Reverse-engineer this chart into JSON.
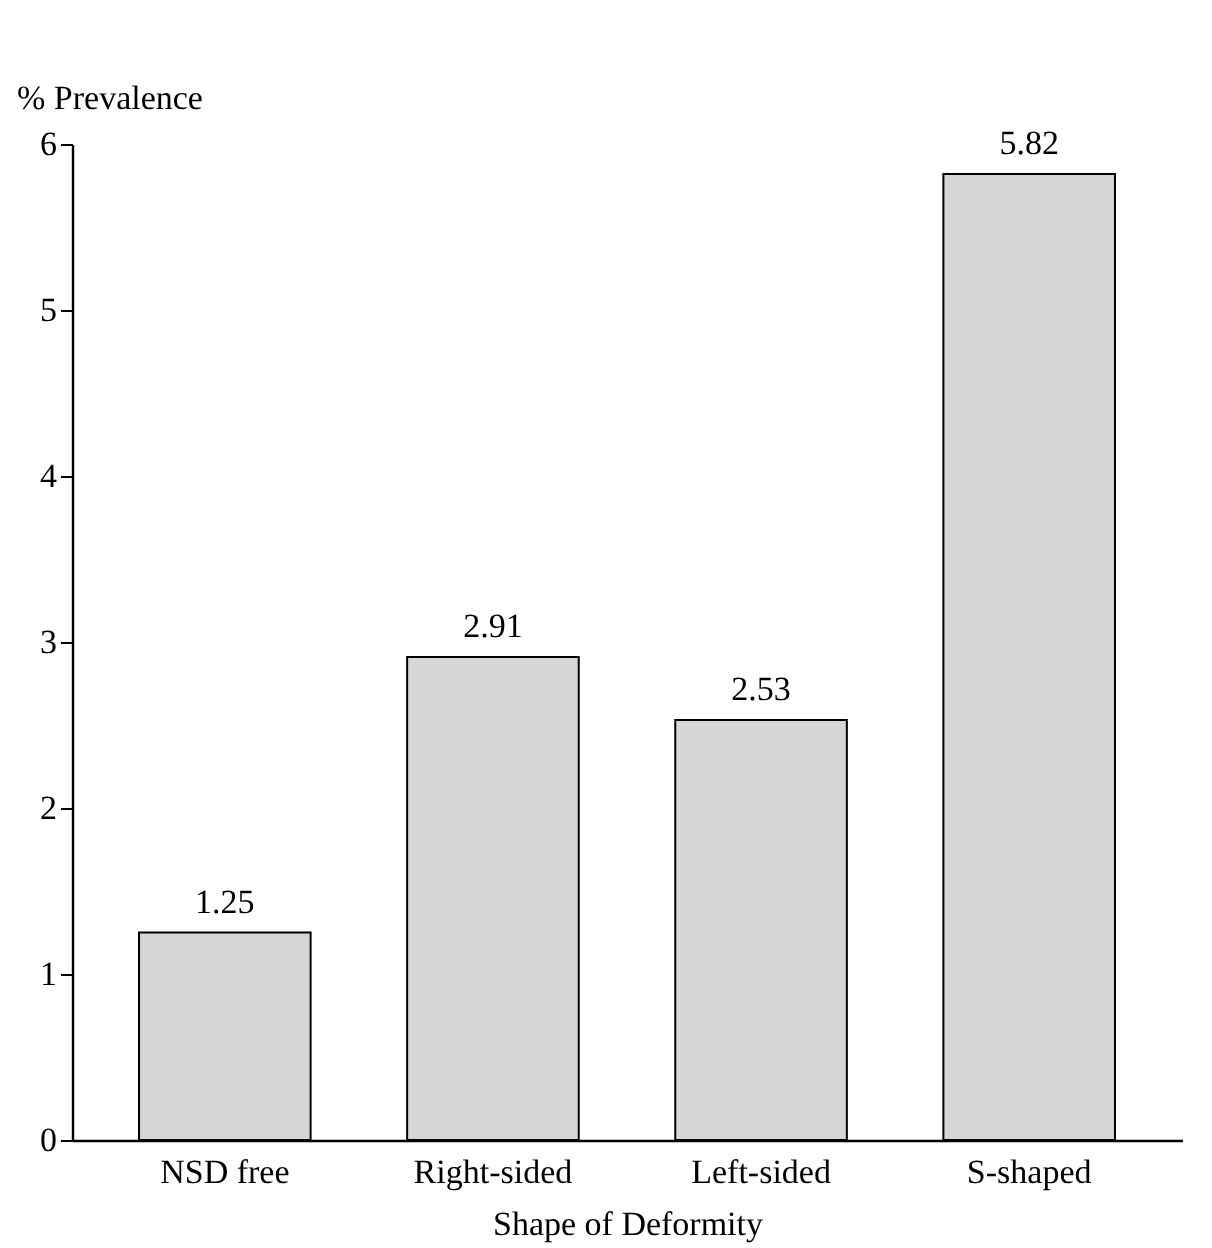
{
  "chart_data": {
    "type": "bar",
    "xlabel": "Shape of Deformity",
    "ylabel": "% Prevalence",
    "categories": [
      "NSD free",
      "Right-sided",
      "Left-sided",
      "S-shaped"
    ],
    "values": [
      1.25,
      2.91,
      2.53,
      5.82
    ],
    "color": "#d6d6d6",
    "ylim": [
      0,
      6
    ],
    "yticks": [
      0,
      1,
      2,
      3,
      4,
      5,
      6
    ],
    "grid": false,
    "data_labels": true
  }
}
